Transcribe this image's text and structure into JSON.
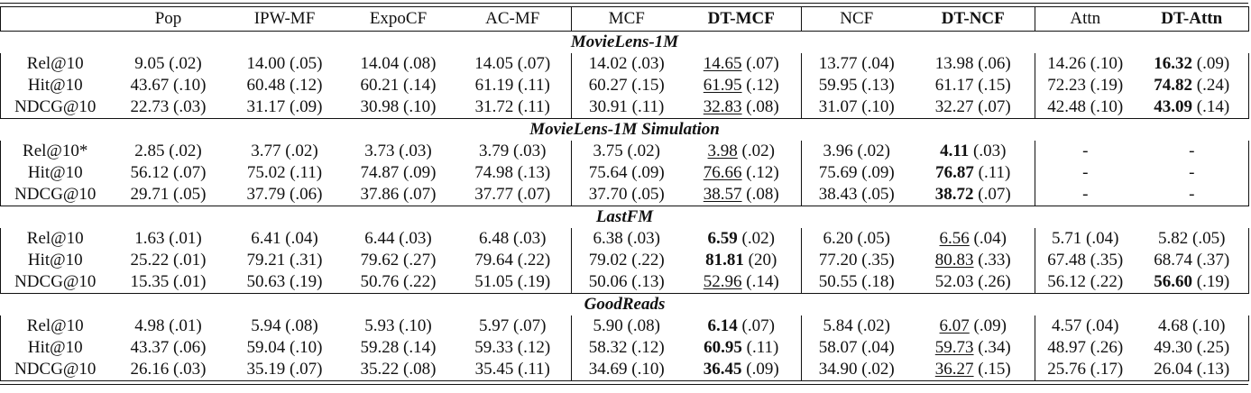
{
  "table": {
    "columns": [
      {
        "label": "",
        "bold": false
      },
      {
        "label": "Pop",
        "bold": false
      },
      {
        "label": "IPW-MF",
        "bold": false
      },
      {
        "label": "ExpoCF",
        "bold": false
      },
      {
        "label": "AC-MF",
        "bold": false
      },
      {
        "label": "MCF",
        "bold": false
      },
      {
        "label": "DT-MCF",
        "bold": true
      },
      {
        "label": "NCF",
        "bold": false
      },
      {
        "label": "DT-NCF",
        "bold": true
      },
      {
        "label": "Attn",
        "bold": false
      },
      {
        "label": "DT-Attn",
        "bold": true
      }
    ],
    "sections": [
      {
        "title": "MovieLens-1M",
        "rows": [
          {
            "metric": "Rel@10",
            "cells": [
              {
                "v": "9.05",
                "sd": "(.02)"
              },
              {
                "v": "14.00",
                "sd": "(.05)"
              },
              {
                "v": "14.04",
                "sd": "(.08)"
              },
              {
                "v": "14.05",
                "sd": "(.07)"
              },
              {
                "v": "14.02",
                "sd": "(.03)"
              },
              {
                "v": "14.65",
                "sd": "(.07)",
                "style": "u"
              },
              {
                "v": "13.77",
                "sd": "(.04)"
              },
              {
                "v": "13.98",
                "sd": "(.06)"
              },
              {
                "v": "14.26",
                "sd": "(.10)"
              },
              {
                "v": "16.32",
                "sd": "(.09)",
                "style": "b"
              }
            ]
          },
          {
            "metric": "Hit@10",
            "cells": [
              {
                "v": "43.67",
                "sd": "(.10)"
              },
              {
                "v": "60.48",
                "sd": "(.12)"
              },
              {
                "v": "60.21",
                "sd": "(.14)"
              },
              {
                "v": "61.19",
                "sd": "(.11)"
              },
              {
                "v": "60.27",
                "sd": "(.15)"
              },
              {
                "v": "61.95",
                "sd": "(.12)",
                "style": "u"
              },
              {
                "v": "59.95",
                "sd": "(.13)"
              },
              {
                "v": "61.17",
                "sd": "(.15)"
              },
              {
                "v": "72.23",
                "sd": "(.19)"
              },
              {
                "v": "74.82",
                "sd": "(.24)",
                "style": "b"
              }
            ]
          },
          {
            "metric": "NDCG@10",
            "cells": [
              {
                "v": "22.73",
                "sd": "(.03)"
              },
              {
                "v": "31.17",
                "sd": "(.09)"
              },
              {
                "v": "30.98",
                "sd": "(.10)"
              },
              {
                "v": "31.72",
                "sd": "(.11)"
              },
              {
                "v": "30.91",
                "sd": "(.11)"
              },
              {
                "v": "32.83",
                "sd": "(.08)",
                "style": "u"
              },
              {
                "v": "31.07",
                "sd": "(.10)"
              },
              {
                "v": "32.27",
                "sd": "(.07)"
              },
              {
                "v": "42.48",
                "sd": "(.10)"
              },
              {
                "v": "43.09",
                "sd": "(.14)",
                "style": "b"
              }
            ]
          }
        ]
      },
      {
        "title": "MovieLens-1M Simulation",
        "rows": [
          {
            "metric": "Rel@10*",
            "cells": [
              {
                "v": "2.85",
                "sd": "(.02)"
              },
              {
                "v": "3.77",
                "sd": "(.02)"
              },
              {
                "v": "3.73",
                "sd": "(.03)"
              },
              {
                "v": "3.79",
                "sd": "(.03)"
              },
              {
                "v": "3.75",
                "sd": "(.02)"
              },
              {
                "v": "3.98",
                "sd": "(.02)",
                "style": "u"
              },
              {
                "v": "3.96",
                "sd": "(.02)"
              },
              {
                "v": "4.11",
                "sd": "(.03)",
                "style": "b"
              },
              {
                "v": "-",
                "sd": ""
              },
              {
                "v": "-",
                "sd": ""
              }
            ]
          },
          {
            "metric": "Hit@10",
            "cells": [
              {
                "v": "56.12",
                "sd": "(.07)"
              },
              {
                "v": "75.02",
                "sd": "(.11)"
              },
              {
                "v": "74.87",
                "sd": "(.09)"
              },
              {
                "v": "74.98",
                "sd": "(.13)"
              },
              {
                "v": "75.64",
                "sd": "(.09)"
              },
              {
                "v": "76.66",
                "sd": "(.12)",
                "style": "u"
              },
              {
                "v": "75.69",
                "sd": "(.09)"
              },
              {
                "v": "76.87",
                "sd": "(.11)",
                "style": "b"
              },
              {
                "v": "-",
                "sd": ""
              },
              {
                "v": "-",
                "sd": ""
              }
            ]
          },
          {
            "metric": "NDCG@10",
            "cells": [
              {
                "v": "29.71",
                "sd": "(.05)"
              },
              {
                "v": "37.79",
                "sd": "(.06)"
              },
              {
                "v": "37.86",
                "sd": "(.07)"
              },
              {
                "v": "37.77",
                "sd": "(.07)"
              },
              {
                "v": "37.70",
                "sd": "(.05)"
              },
              {
                "v": "38.57",
                "sd": "(.08)",
                "style": "u"
              },
              {
                "v": "38.43",
                "sd": "(.05)"
              },
              {
                "v": "38.72",
                "sd": "(.07)",
                "style": "b"
              },
              {
                "v": "-",
                "sd": ""
              },
              {
                "v": "-",
                "sd": ""
              }
            ]
          }
        ]
      },
      {
        "title": "LastFM",
        "rows": [
          {
            "metric": "Rel@10",
            "cells": [
              {
                "v": "1.63",
                "sd": "(.01)"
              },
              {
                "v": "6.41",
                "sd": "(.04)"
              },
              {
                "v": "6.44",
                "sd": "(.03)"
              },
              {
                "v": "6.48",
                "sd": "(.03)"
              },
              {
                "v": "6.38",
                "sd": "(.03)"
              },
              {
                "v": "6.59",
                "sd": "(.02)",
                "style": "b"
              },
              {
                "v": "6.20",
                "sd": "(.05)"
              },
              {
                "v": "6.56",
                "sd": "(.04)",
                "style": "u"
              },
              {
                "v": "5.71",
                "sd": "(.04)"
              },
              {
                "v": "5.82",
                "sd": "(.05)"
              }
            ]
          },
          {
            "metric": "Hit@10",
            "cells": [
              {
                "v": "25.22",
                "sd": "(.01)"
              },
              {
                "v": "79.21",
                "sd": "(.31)"
              },
              {
                "v": "79.62",
                "sd": "(.27)"
              },
              {
                "v": "79.64",
                "sd": "(.22)"
              },
              {
                "v": "79.02",
                "sd": "(.22)"
              },
              {
                "v": "81.81",
                "sd": "(20)",
                "style": "b"
              },
              {
                "v": "77.20",
                "sd": "(.35)"
              },
              {
                "v": "80.83",
                "sd": "(.33)",
                "style": "u"
              },
              {
                "v": "67.48",
                "sd": "(.35)"
              },
              {
                "v": "68.74",
                "sd": "(.37)"
              }
            ]
          },
          {
            "metric": "NDCG@10",
            "cells": [
              {
                "v": "15.35",
                "sd": "(.01)"
              },
              {
                "v": "50.63",
                "sd": "(.19)"
              },
              {
                "v": "50.76",
                "sd": "(.22)"
              },
              {
                "v": "51.05",
                "sd": "(.19)"
              },
              {
                "v": "50.06",
                "sd": "(.13)"
              },
              {
                "v": "52.96",
                "sd": "(.14)",
                "style": "u"
              },
              {
                "v": "50.55",
                "sd": "(.18)"
              },
              {
                "v": "52.03",
                "sd": "(.26)"
              },
              {
                "v": "56.12",
                "sd": "(.22)"
              },
              {
                "v": "56.60",
                "sd": "(.19)",
                "style": "b"
              }
            ]
          }
        ]
      },
      {
        "title": "GoodReads",
        "rows": [
          {
            "metric": "Rel@10",
            "cells": [
              {
                "v": "4.98",
                "sd": "(.01)"
              },
              {
                "v": "5.94",
                "sd": "(.08)"
              },
              {
                "v": "5.93",
                "sd": "(.10)"
              },
              {
                "v": "5.97",
                "sd": "(.07)"
              },
              {
                "v": "5.90",
                "sd": "(.08)"
              },
              {
                "v": "6.14",
                "sd": "(.07)",
                "style": "b"
              },
              {
                "v": "5.84",
                "sd": "(.02)"
              },
              {
                "v": "6.07",
                "sd": "(.09)",
                "style": "u"
              },
              {
                "v": "4.57",
                "sd": "(.04)"
              },
              {
                "v": "4.68",
                "sd": "(.10)"
              }
            ]
          },
          {
            "metric": "Hit@10",
            "cells": [
              {
                "v": "43.37",
                "sd": "(.06)"
              },
              {
                "v": "59.04",
                "sd": "(.10)"
              },
              {
                "v": "59.28",
                "sd": "(.14)"
              },
              {
                "v": "59.33",
                "sd": "(.12)"
              },
              {
                "v": "58.32",
                "sd": "(.12)"
              },
              {
                "v": "60.95",
                "sd": "(.11)",
                "style": "b"
              },
              {
                "v": "58.07",
                "sd": "(.04)"
              },
              {
                "v": "59.73",
                "sd": "(.34)",
                "style": "u"
              },
              {
                "v": "48.97",
                "sd": "(.26)"
              },
              {
                "v": "49.30",
                "sd": "(.25)"
              }
            ]
          },
          {
            "metric": "NDCG@10",
            "cells": [
              {
                "v": "26.16",
                "sd": "(.03)"
              },
              {
                "v": "35.19",
                "sd": "(.07)"
              },
              {
                "v": "35.22",
                "sd": "(.08)"
              },
              {
                "v": "35.45",
                "sd": "(.11)"
              },
              {
                "v": "34.69",
                "sd": "(.10)"
              },
              {
                "v": "36.45",
                "sd": "(.09)",
                "style": "b"
              },
              {
                "v": "34.90",
                "sd": "(.02)"
              },
              {
                "v": "36.27",
                "sd": "(.15)",
                "style": "u"
              },
              {
                "v": "25.76",
                "sd": "(.17)"
              },
              {
                "v": "26.04",
                "sd": "(.13)"
              }
            ]
          }
        ]
      }
    ]
  }
}
